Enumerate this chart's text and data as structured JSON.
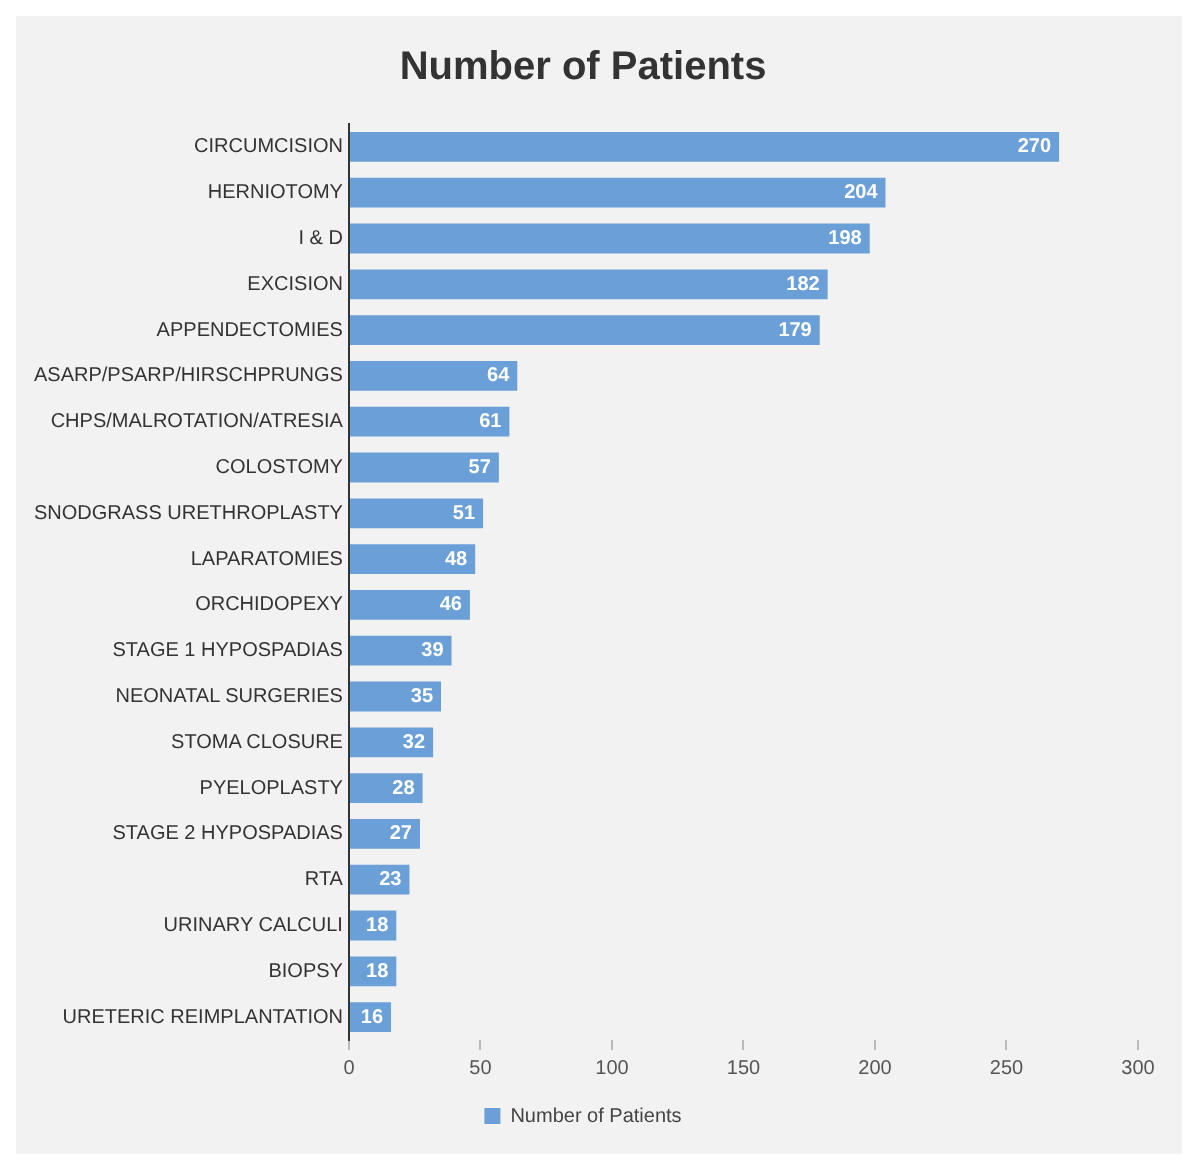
{
  "chart_data": {
    "type": "bar",
    "orientation": "horizontal",
    "title": "Number of Patients",
    "categories": [
      "CIRCUMCISION",
      "HERNIOTOMY",
      "I & D",
      "EXCISION",
      "APPENDECTOMIES",
      "ASARP/PSARP/HIRSCHPRUNGS",
      "CHPS/MALROTATION/ATRESIA",
      "COLOSTOMY",
      "SNODGRASS URETHROPLASTY",
      "LAPARATOMIES",
      "ORCHIDOPEXY",
      "STAGE 1 HYPOSPADIAS",
      "NEONATAL SURGERIES",
      "STOMA CLOSURE",
      "PYELOPLASTY",
      "STAGE 2 HYPOSPADIAS",
      "RTA",
      "URINARY CALCULI",
      "BIOPSY",
      "URETERIC REIMPLANTATION"
    ],
    "series": [
      {
        "name": "Number of Patients",
        "color": "#6a9fd8",
        "values": [
          270,
          204,
          198,
          182,
          179,
          64,
          61,
          57,
          51,
          48,
          46,
          39,
          35,
          32,
          28,
          27,
          23,
          18,
          18,
          16
        ]
      }
    ],
    "xlim": [
      0,
      300
    ],
    "xticks": [
      0,
      50,
      100,
      150,
      200,
      250,
      300
    ],
    "data_labels": true,
    "grid": false,
    "legend": "bottom"
  }
}
